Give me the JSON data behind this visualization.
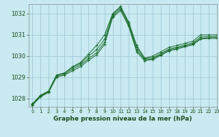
{
  "title": "Graphe pression niveau de la mer (hPa)",
  "background_color": "#c8eaf0",
  "grid_color": "#a0c8d8",
  "line_color": "#1a6b2a",
  "xlim": [
    -0.5,
    23
  ],
  "ylim": [
    1027.6,
    1032.45
  ],
  "yticks": [
    1028,
    1029,
    1030,
    1031,
    1032
  ],
  "xticks": [
    0,
    1,
    2,
    3,
    4,
    5,
    6,
    7,
    8,
    9,
    10,
    11,
    12,
    13,
    14,
    15,
    16,
    17,
    18,
    19,
    20,
    21,
    22,
    23
  ],
  "series": [
    [
      1027.7,
      1028.1,
      1028.3,
      1029.1,
      1029.2,
      1029.5,
      1029.7,
      1030.1,
      1030.5,
      1031.0,
      1032.0,
      1032.35,
      1031.6,
      1030.5,
      1029.9,
      1030.0,
      1030.2,
      1030.4,
      1030.5,
      1030.6,
      1030.7,
      1031.0,
      1031.0,
      1031.0
    ],
    [
      1027.75,
      1028.15,
      1028.35,
      1029.1,
      1029.2,
      1029.45,
      1029.65,
      1030.0,
      1030.3,
      1030.8,
      1031.95,
      1032.3,
      1031.55,
      1030.4,
      1029.88,
      1029.92,
      1030.12,
      1030.32,
      1030.42,
      1030.52,
      1030.62,
      1030.9,
      1030.92,
      1030.92
    ],
    [
      1027.72,
      1028.12,
      1028.32,
      1029.05,
      1029.15,
      1029.38,
      1029.58,
      1029.88,
      1030.15,
      1030.65,
      1031.88,
      1032.22,
      1031.48,
      1030.28,
      1029.83,
      1029.87,
      1030.07,
      1030.27,
      1030.37,
      1030.47,
      1030.57,
      1030.83,
      1030.87,
      1030.87
    ],
    [
      1027.68,
      1028.08,
      1028.28,
      1029.0,
      1029.1,
      1029.3,
      1029.5,
      1029.8,
      1030.05,
      1030.55,
      1031.82,
      1032.15,
      1031.4,
      1030.2,
      1029.78,
      1029.83,
      1030.03,
      1030.23,
      1030.33,
      1030.43,
      1030.53,
      1030.8,
      1030.83,
      1030.83
    ]
  ]
}
